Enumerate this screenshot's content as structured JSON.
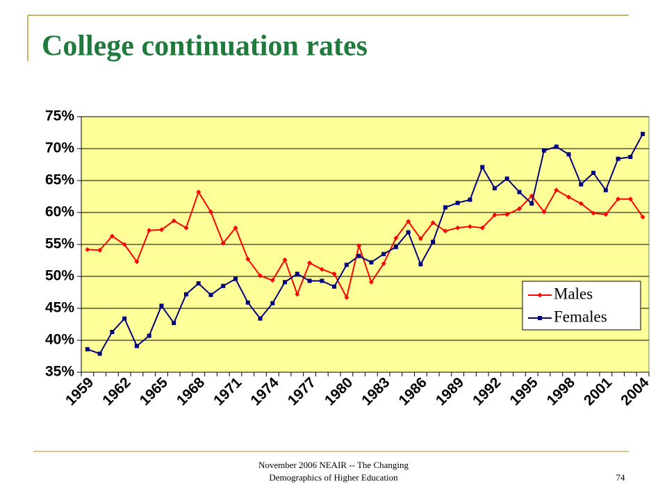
{
  "chart_data": {
    "type": "line",
    "title": "College continuation rates",
    "categories": [
      "1959",
      null,
      null,
      "1962",
      null,
      null,
      "1965",
      null,
      null,
      "1968",
      null,
      null,
      "1971",
      null,
      null,
      "1974",
      null,
      null,
      "1977",
      null,
      null,
      "1980",
      null,
      null,
      "1983",
      null,
      null,
      "1986",
      null,
      null,
      "1989",
      null,
      null,
      "1992",
      null,
      null,
      "1995",
      null,
      null,
      "1998",
      null,
      null,
      "2001",
      null,
      null,
      "2004"
    ],
    "series": [
      {
        "name": "Males",
        "color": "#ff0000",
        "values": [
          54.2,
          54.1,
          56.3,
          55.0,
          52.3,
          57.2,
          57.3,
          58.7,
          57.6,
          63.2,
          60.1,
          55.2,
          57.6,
          52.7,
          50.1,
          49.4,
          52.6,
          47.2,
          52.1,
          51.1,
          50.4,
          46.7,
          54.8,
          49.1,
          52.0,
          56.0,
          58.6,
          55.9,
          58.4,
          57.1,
          57.6,
          57.8,
          57.6,
          59.6,
          59.7,
          60.6,
          62.6,
          60.1,
          63.5,
          62.4,
          61.4,
          59.9,
          59.7,
          62.1,
          62.1,
          59.3
        ]
      },
      {
        "name": "Females",
        "color": "#000080",
        "values": [
          38.6,
          37.9,
          41.3,
          43.4,
          39.1,
          40.7,
          45.4,
          42.7,
          47.2,
          48.9,
          47.1,
          48.5,
          49.6,
          45.9,
          43.4,
          45.8,
          49.1,
          50.4,
          49.3,
          49.3,
          48.4,
          51.8,
          53.2,
          52.2,
          53.5,
          54.6,
          56.9,
          51.9,
          55.4,
          60.8,
          61.5,
          62.0,
          67.1,
          63.8,
          65.3,
          63.2,
          61.4,
          69.7,
          70.3,
          69.1,
          64.4,
          66.2,
          63.5,
          68.4,
          68.7,
          72.3
        ]
      }
    ],
    "ylim": [
      35,
      75
    ],
    "yticks": [
      {
        "value": 35,
        "label": "35%"
      },
      {
        "value": 40,
        "label": "40%"
      },
      {
        "value": 45,
        "label": "45%"
      },
      {
        "value": 50,
        "label": "50%"
      },
      {
        "value": 55,
        "label": "55%"
      },
      {
        "value": 60,
        "label": "60%"
      },
      {
        "value": 65,
        "label": "65%"
      },
      {
        "value": 70,
        "label": "70%"
      },
      {
        "value": 75,
        "label": "75%"
      }
    ],
    "grid": true,
    "legend": "lower right",
    "plot_background": "#ffff99"
  },
  "footer": {
    "lines": [
      "November 2006 NEAIR -- The Changing",
      "Demographics of Higher Education"
    ],
    "page": "74"
  }
}
